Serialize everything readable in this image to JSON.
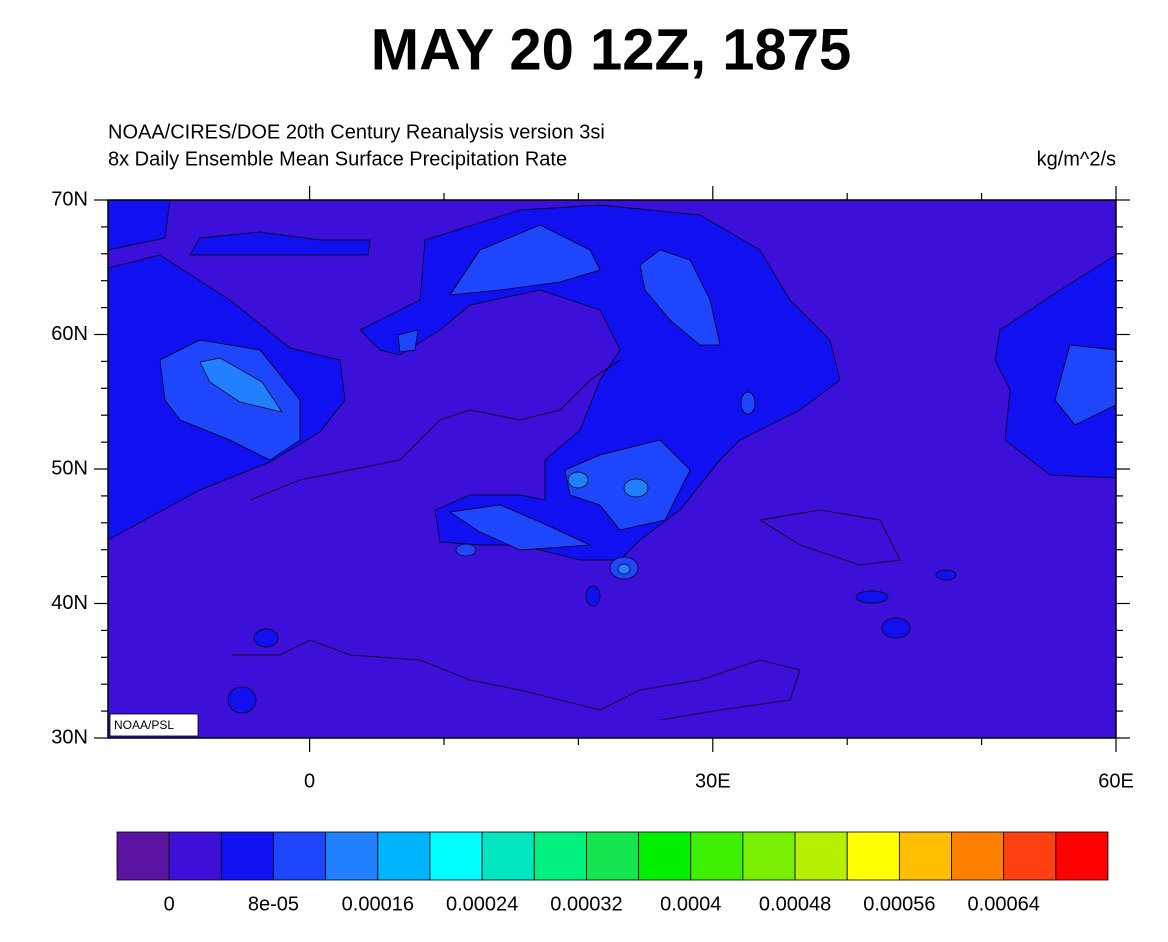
{
  "chart_data": {
    "type": "contour-map",
    "title": "MAY 20 12Z, 1875",
    "subtitle": [
      "NOAA/CIRES/DOE 20th Century Reanalysis version 3si",
      "8x Daily Ensemble Mean  Surface Precipitation Rate"
    ],
    "units": "kg/m^2/s",
    "credit": "NOAA/PSL",
    "xlim": [
      -15,
      60
    ],
    "ylim": [
      30,
      70
    ],
    "xticks": [
      {
        "value": 0,
        "label": "0"
      },
      {
        "value": 30,
        "label": "30E"
      },
      {
        "value": 60,
        "label": "60E"
      }
    ],
    "yticks": [
      {
        "value": 30,
        "label": "30N"
      },
      {
        "value": 40,
        "label": "40N"
      },
      {
        "value": 50,
        "label": "50N"
      },
      {
        "value": 60,
        "label": "60N"
      },
      {
        "value": 70,
        "label": "70N"
      }
    ],
    "xminorticks": [
      10,
      20,
      40,
      50
    ],
    "yminorticks": [
      32,
      34,
      36,
      38,
      42,
      44,
      46,
      48,
      52,
      54,
      56,
      58,
      62,
      64,
      66,
      68
    ],
    "levels": [
      0,
      4e-05,
      8e-05,
      0.00012,
      0.00016,
      0.0002,
      0.00024,
      0.00028,
      0.00032,
      0.00036,
      0.0004,
      0.00044,
      0.00048,
      0.00052,
      0.00056,
      0.0006,
      0.00064,
      0.00068
    ],
    "level_labels": [
      0,
      {
        "value": 8e-05,
        "label": "8e-05"
      },
      0.00016,
      0.00024,
      0.00032,
      0.0004,
      0.00048,
      0.00056,
      0.00064
    ],
    "colors": [
      "#5a14a0",
      "#3c10d8",
      "#1010f0",
      "#1e46ff",
      "#2080ff",
      "#00b4ff",
      "#00ffff",
      "#00e6c0",
      "#00f080",
      "#14e650",
      "#00f000",
      "#3cf000",
      "#78f000",
      "#b4f000",
      "#ffff00",
      "#ffbe00",
      "#ff8000",
      "#ff4010",
      "#ff0000"
    ]
  }
}
